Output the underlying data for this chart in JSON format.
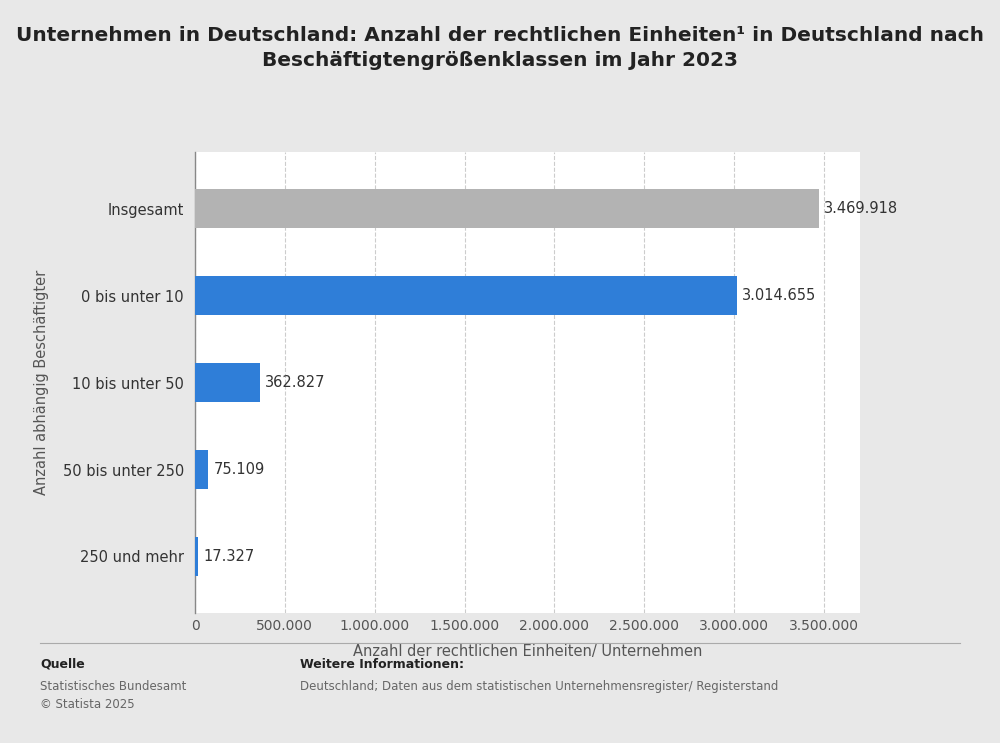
{
  "title_line1": "Unternehmen in Deutschland: Anzahl der rechtlichen Einheiten¹ in Deutschland nach",
  "title_line2": "Beschäftigtengrößenklassen im Jahr 2023",
  "categories": [
    "250 und mehr",
    "50 bis unter 250",
    "10 bis unter 50",
    "0 bis unter 10",
    "Insgesamt"
  ],
  "values": [
    17327,
    75109,
    362827,
    3014655,
    3469918
  ],
  "bar_colors": [
    "#2f7ed8",
    "#2f7ed8",
    "#2f7ed8",
    "#2f7ed8",
    "#b3b3b3"
  ],
  "value_labels": [
    "17.327",
    "75.109",
    "362.827",
    "3.014.655",
    "3.469.918"
  ],
  "xlabel": "Anzahl der rechtlichen Einheiten/ Unternehmen",
  "ylabel": "Anzahl abhängig Beschäftigter",
  "xlim": [
    0,
    3700000
  ],
  "xticks": [
    0,
    500000,
    1000000,
    1500000,
    2000000,
    2500000,
    3000000,
    3500000
  ],
  "xtick_labels": [
    "0",
    "500.000",
    "1.000.000",
    "1.500.000",
    "2.000.000",
    "2.500.000",
    "3.000.000",
    "3.500.000"
  ],
  "background_color": "#e8e8e8",
  "plot_bg_color": "#ffffff",
  "title_fontsize": 14.5,
  "axis_label_fontsize": 10.5,
  "tick_fontsize": 10,
  "value_label_fontsize": 10.5,
  "ytick_fontsize": 10.5,
  "source_label": "Quelle",
  "source_text": "Statistisches Bundesamt\n© Statista 2025",
  "info_label": "Weitere Informationen:",
  "info_text": "Deutschland; Daten aus dem statistischen Unternehmensregister/ Registerstand",
  "gridline_color": "#cccccc"
}
